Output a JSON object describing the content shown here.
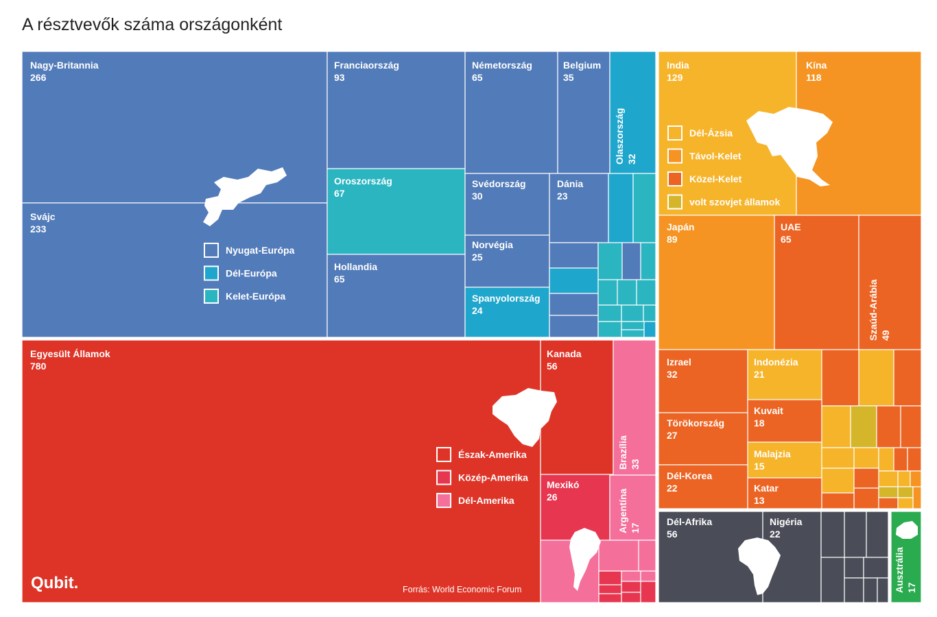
{
  "chart_data": {
    "type": "treemap",
    "title": "A résztvevők száma országonként",
    "source": "Forrás: World Economic Forum",
    "logo": "Qubit.",
    "colors": {
      "nyugat_europa": "#527bb9",
      "del_europa": "#1fa6cc",
      "kelet_europa": "#2bb5c1",
      "eszak_amerika": "#de3427",
      "kozep_amerika": "#e73650",
      "del_amerika": "#f56f9b",
      "del_azsia": "#f6b42a",
      "tavol_kelet": "#f59422",
      "kozel_kelet": "#ec6423",
      "volt_szovjet": "#d5b62b",
      "afrika": "#4a4d57",
      "ausztralia": "#2aab4f"
    },
    "legends": {
      "europe": [
        "Nyugat-Európa",
        "Dél-Európa",
        "Kelet-Európa"
      ],
      "americas": [
        "Észak-Amerika",
        "Közép-Amerika",
        "Dél-Amerika"
      ],
      "asia": [
        "Dél-Ázsia",
        "Távol-Kelet",
        "Közel-Kelet",
        "volt szovjet államok"
      ]
    },
    "labeled_countries": [
      {
        "name": "Nagy-Britannia",
        "value": 266
      },
      {
        "name": "Svájc",
        "value": 233
      },
      {
        "name": "Franciaország",
        "value": 93
      },
      {
        "name": "Németország",
        "value": 65
      },
      {
        "name": "Belgium",
        "value": 35
      },
      {
        "name": "Olaszország",
        "value": 32
      },
      {
        "name": "Oroszország",
        "value": 67
      },
      {
        "name": "Hollandia",
        "value": 65
      },
      {
        "name": "Svédország",
        "value": 30
      },
      {
        "name": "Dánia",
        "value": 23
      },
      {
        "name": "Norvégia",
        "value": 25
      },
      {
        "name": "Spanyolország",
        "value": 24
      },
      {
        "name": "Egyesült Államok",
        "value": 780
      },
      {
        "name": "Kanada",
        "value": 56
      },
      {
        "name": "Brazília",
        "value": 33
      },
      {
        "name": "Mexikó",
        "value": 26
      },
      {
        "name": "Argentína",
        "value": 17
      },
      {
        "name": "India",
        "value": 129
      },
      {
        "name": "Kína",
        "value": 118
      },
      {
        "name": "Japán",
        "value": 89
      },
      {
        "name": "UAE",
        "value": 65
      },
      {
        "name": "Szaúd-Arábia",
        "value": 49
      },
      {
        "name": "Izrael",
        "value": 32
      },
      {
        "name": "Indonézia",
        "value": 21
      },
      {
        "name": "Kuvait",
        "value": 18
      },
      {
        "name": "Törökország",
        "value": 27
      },
      {
        "name": "Malajzia",
        "value": 15
      },
      {
        "name": "Dél-Korea",
        "value": 22
      },
      {
        "name": "Katar",
        "value": 13
      },
      {
        "name": "Dél-Afrika",
        "value": 56
      },
      {
        "name": "Nigéria",
        "value": 22
      },
      {
        "name": "Ausztrália",
        "value": 17
      }
    ]
  }
}
